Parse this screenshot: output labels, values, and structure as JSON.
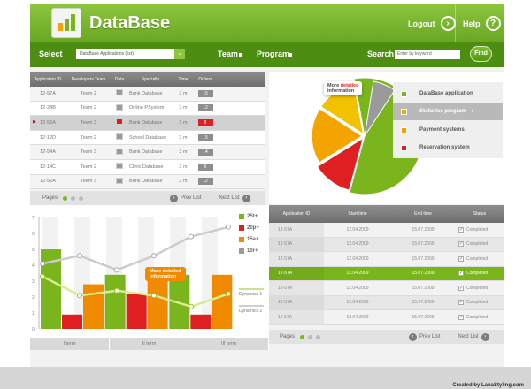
{
  "header": {
    "title": "DataBase",
    "logout_label": "Logout",
    "logout_icon": "arrow-right-icon",
    "help_label": "Help",
    "help_icon": "question-icon"
  },
  "toolbar": {
    "select_label": "Select",
    "select_value": "DataBase Applications (list)",
    "team_label": "Team",
    "program_label": "Program",
    "search_label": "Search",
    "search_placeholder": "Enter by keyword",
    "find_label": "Find"
  },
  "table1": {
    "headers": [
      "Application ID",
      "Developers Team",
      "Data",
      "Specialty",
      "Time",
      "Orders"
    ],
    "rows": [
      {
        "id": "12-57A",
        "team": "Team 2",
        "specialty": "Bank Database",
        "time": "3 m",
        "orders": "15",
        "flag": false
      },
      {
        "id": "12-24B",
        "team": "Team 2",
        "specialty": "Online PSystem",
        "time": "3 m",
        "orders": "12",
        "flag": false
      },
      {
        "id": "12-56A",
        "team": "Team 3",
        "specialty": "Bank Database",
        "time": "3 m",
        "orders": "8",
        "flag": true
      },
      {
        "id": "12-12D",
        "team": "Team 2",
        "specialty": "School Database",
        "time": "3 m",
        "orders": "15",
        "flag": false
      },
      {
        "id": "12-54A",
        "team": "Team 3",
        "specialty": "Bank Database",
        "time": "3 m",
        "orders": "14",
        "flag": false
      },
      {
        "id": "12-14C",
        "team": "Team 2",
        "specialty": "Clinic Database",
        "time": "3 m",
        "orders": "6",
        "flag": false
      },
      {
        "id": "12-52A",
        "team": "Team 3",
        "specialty": "Bank Database",
        "time": "3 m",
        "orders": "12",
        "flag": false
      }
    ]
  },
  "pager1": {
    "label": "Pages",
    "prev": "Prev List",
    "next": "Next List"
  },
  "pie_legend": {
    "items": [
      {
        "label": "DataBase application",
        "color": "#7ab51e"
      },
      {
        "label": "Statistics program",
        "color": "#f5a300"
      },
      {
        "label": "Payment systems",
        "color": "#f0c000"
      },
      {
        "label": "Reservation system",
        "color": "#e02020"
      }
    ],
    "callout_prefix": "More",
    "callout_highlight": "detailed",
    "callout_suffix": "information"
  },
  "chart_legend": {
    "items": [
      {
        "label": "25t+",
        "color": "#7ab51e"
      },
      {
        "label": "20p+",
        "color": "#e02020"
      },
      {
        "label": "15a+",
        "color": "#f08a00"
      },
      {
        "label": "10r+",
        "color": "#9a9a9a"
      }
    ],
    "dynamics1": "Dynamics 1",
    "dynamics2": "Dynamics 2",
    "callout": "More detailed information"
  },
  "chart_data": {
    "type": "bar",
    "categories": [
      "I term",
      "II term",
      "III term"
    ],
    "ylim": [
      0,
      7
    ],
    "yticks": [
      "0",
      "1",
      "2",
      "3",
      "4",
      "5",
      "6",
      "7"
    ],
    "series": [
      {
        "name": "25t+",
        "values": [
          5.0,
          3.4,
          3.4
        ]
      },
      {
        "name": "20p+",
        "values": [
          0.9,
          2.2,
          0.9
        ]
      },
      {
        "name": "15a+",
        "values": [
          2.8,
          3.0,
          3.4
        ]
      }
    ],
    "lines": [
      {
        "name": "Dynamics 1",
        "values": [
          4.1,
          4.6,
          3.7,
          4.6,
          5.8,
          6.4
        ]
      },
      {
        "name": "Dynamics 2",
        "values": [
          3.3,
          2.1,
          2.4,
          2.1,
          1.4,
          2.2
        ]
      }
    ]
  },
  "pie_data": {
    "type": "pie",
    "values": [
      57,
      18,
      13,
      12
    ]
  },
  "table2": {
    "headers": [
      "Application ID",
      "Start time",
      "End time",
      "Status"
    ],
    "rows": [
      {
        "id": "12-57A",
        "start": "12.04.2009",
        "end": "15.07.2009",
        "status": "Completed",
        "active": false
      },
      {
        "id": "12-57A",
        "start": "12.04.2009",
        "end": "15.07.2009",
        "status": "Completed",
        "active": false
      },
      {
        "id": "12-57A",
        "start": "12.04.2009",
        "end": "15.07.2009",
        "status": "Completed",
        "active": false
      },
      {
        "id": "12-57A",
        "start": "12.04.2009",
        "end": "15.07.2009",
        "status": "Completed",
        "active": true
      },
      {
        "id": "12-57A",
        "start": "12.04.2009",
        "end": "15.07.2009",
        "status": "Completed",
        "active": false
      },
      {
        "id": "12-57A",
        "start": "12.04.2009",
        "end": "15.07.2009",
        "status": "Completed",
        "active": false
      },
      {
        "id": "12-57A",
        "start": "12.04.2009",
        "end": "15.07.2009",
        "status": "Completed",
        "active": false
      }
    ]
  },
  "pager2": {
    "label": "Pages",
    "prev": "Prev List",
    "next": "Next List"
  },
  "footer": {
    "credit": "Created by LanaStyling.com"
  }
}
